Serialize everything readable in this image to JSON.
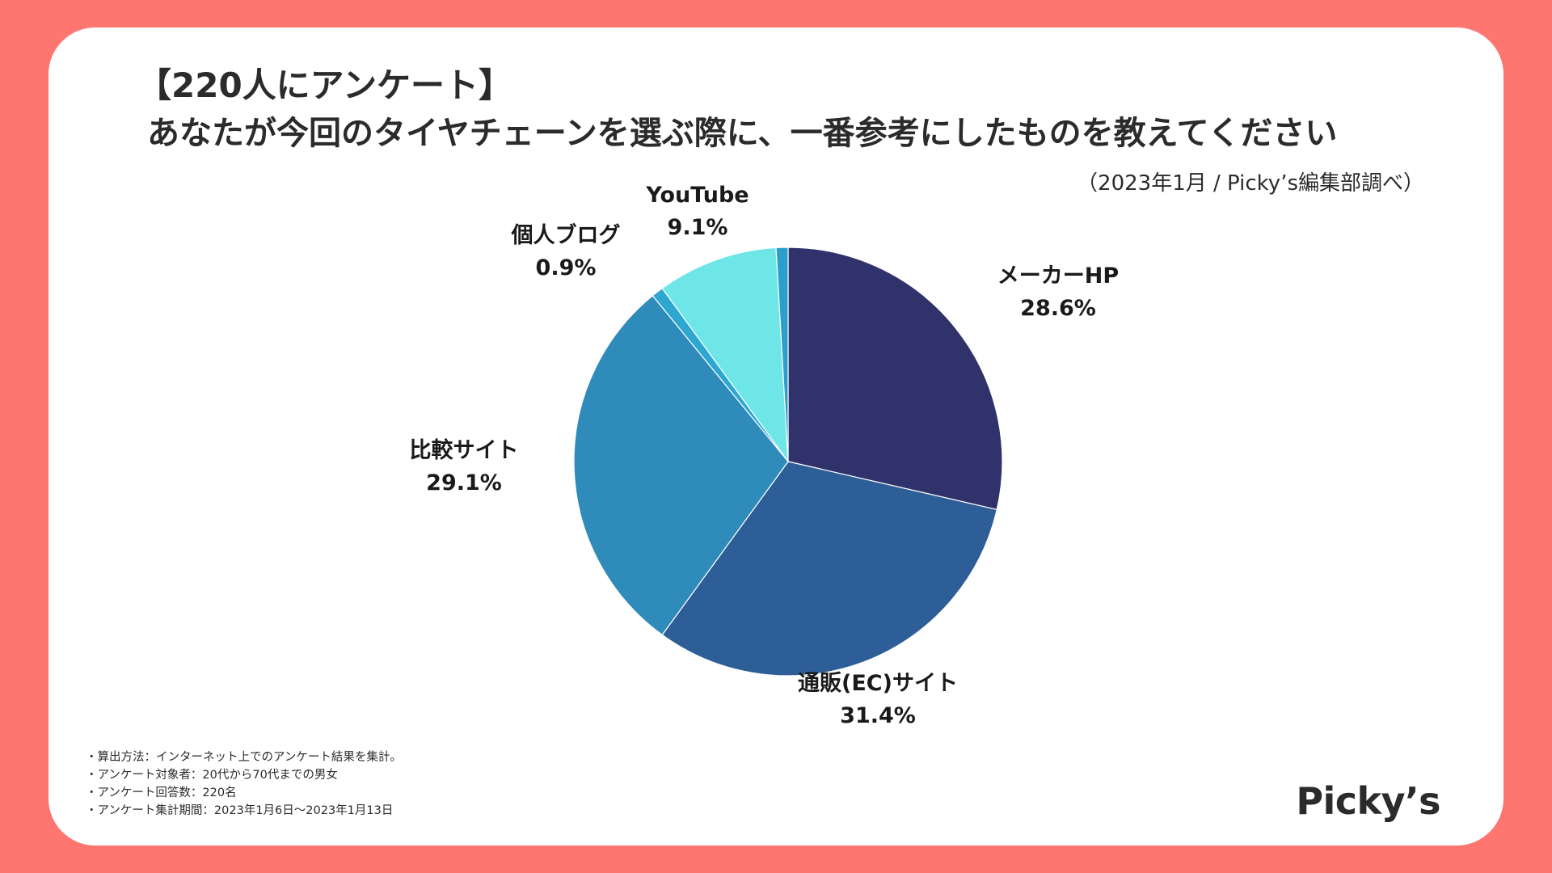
{
  "title": {
    "line1": "【220人にアンケート】",
    "line2": "あなたが今回のタイヤチェーンを選ぶ際に、一番参考にしたものを教えてください"
  },
  "source": "（2023年1月 / Picky’s編集部調べ）",
  "chart_data": {
    "type": "pie",
    "title": "あなたが今回のタイヤチェーンを選ぶ際に、一番参考にしたものを教えてください",
    "start": "12 o'clock",
    "direction": "clockwise",
    "unit": "%",
    "slices": [
      {
        "label": "メーカーHP",
        "value": 28.6,
        "display": "28.6%",
        "color": "#30336b"
      },
      {
        "label": "通販(EC)サイト",
        "value": 31.4,
        "display": "31.4%",
        "color": "#2e5e97"
      },
      {
        "label": "比較サイト",
        "value": 29.1,
        "display": "29.1%",
        "color": "#2e8bba"
      },
      {
        "label": "個人ブログ",
        "value": 0.9,
        "display": "0.9%",
        "color": "#2ea7d0"
      },
      {
        "label": "YouTube",
        "value": 9.1,
        "display": "9.1%",
        "color": "#6ee6e8"
      },
      {
        "label": "",
        "value": 0.9,
        "display": "",
        "color": "#2b9fcb"
      }
    ]
  },
  "notes": [
    "・算出方法：インターネット上でのアンケート結果を集計。",
    "・アンケート対象者：20代から70代までの男女",
    "・アンケート回答数：220名",
    "・アンケート集計期間：2023年1月6日〜2023年1月13日"
  ],
  "logo": "Picky’s"
}
